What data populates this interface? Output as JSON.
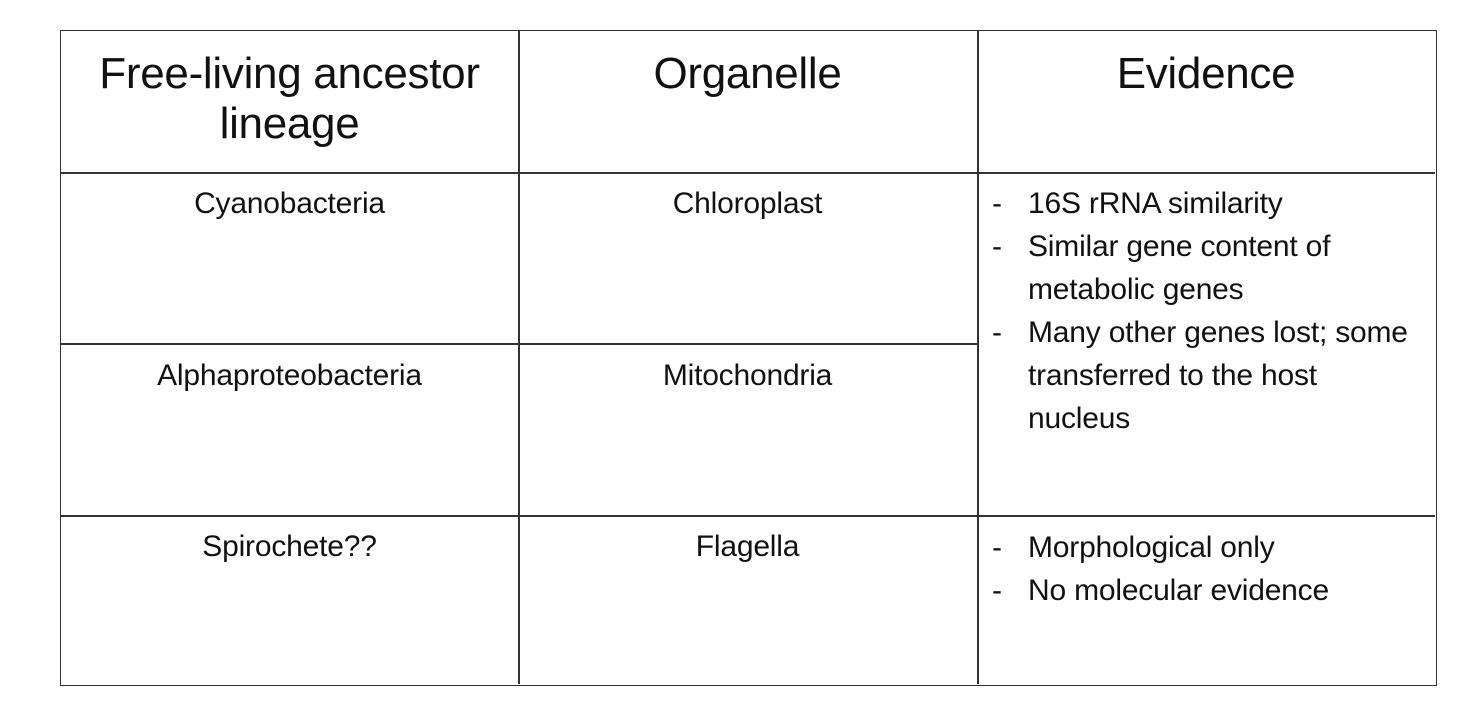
{
  "table": {
    "headers": [
      "Free-living ancestor lineage",
      "Organelle",
      "Evidence"
    ],
    "rows": [
      {
        "ancestor": "Cyanobacteria",
        "organelle": "Chloroplast"
      },
      {
        "ancestor": "Alphaproteobacteria",
        "organelle": "Mitochondria"
      },
      {
        "ancestor": "Spirochete??",
        "organelle": "Flagella"
      }
    ],
    "evidence_shared": [
      "16S rRNA similarity",
      "Similar gene content of metabolic genes",
      "Many other genes lost; some transferred to the host nucleus"
    ],
    "evidence_flagella": [
      "Morphological only",
      "No molecular evidence"
    ]
  }
}
